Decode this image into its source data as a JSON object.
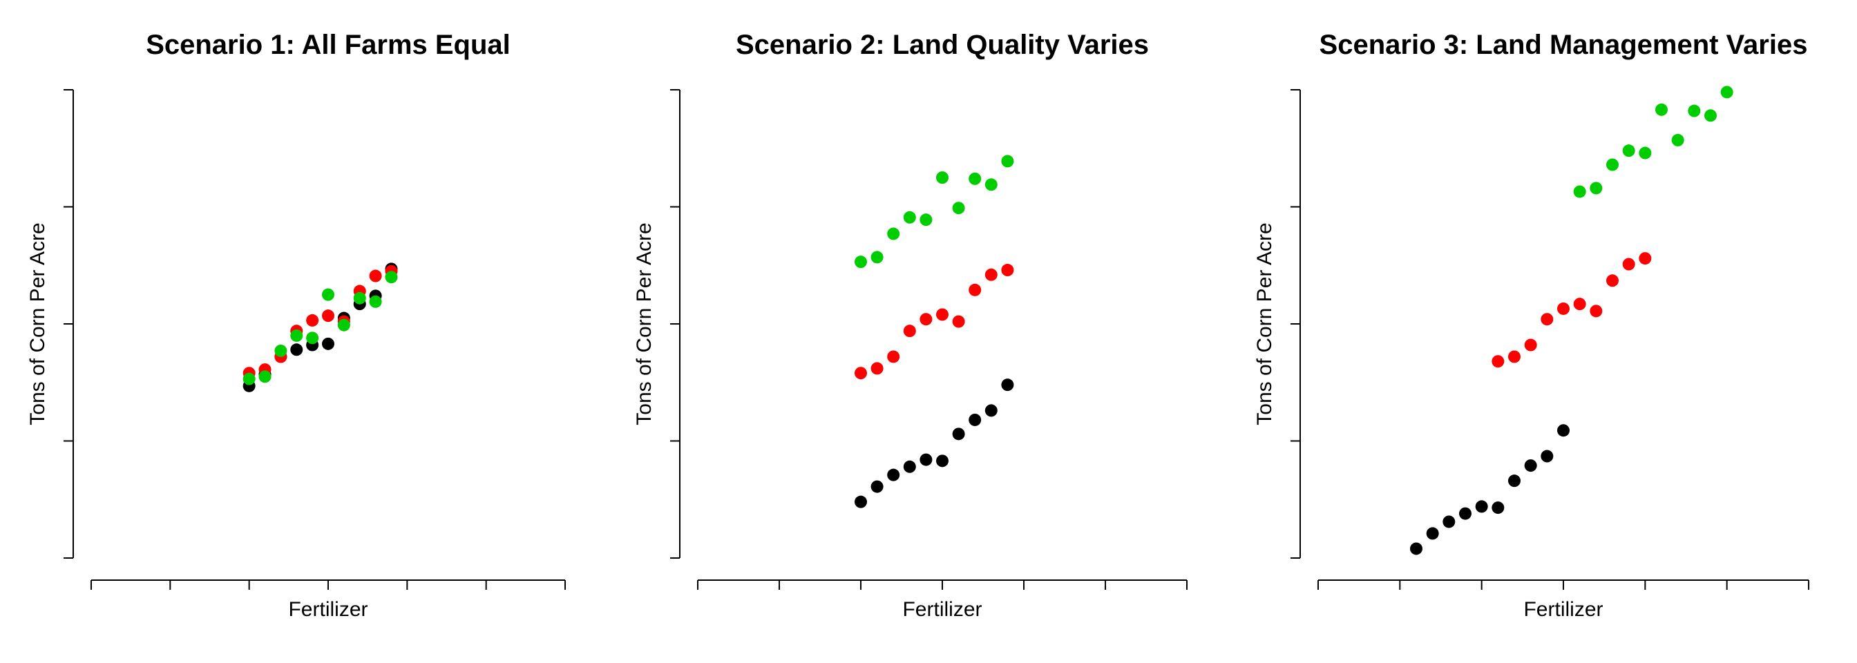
{
  "chart_data": [
    {
      "type": "scatter",
      "title": "Scenario 1: All Farms Equal",
      "xlabel": "Fertilizer",
      "ylabel": "Tons of Corn Per Acre",
      "xlim": [
        0,
        6
      ],
      "ylim": [
        0,
        4
      ],
      "x_ticks": [
        0,
        1,
        2,
        3,
        4,
        5,
        6
      ],
      "y_ticks": [
        0,
        1,
        2,
        3,
        4
      ],
      "grid": false,
      "series": [
        {
          "color": "#000000",
          "points": [
            [
              2.0,
              1.47
            ],
            [
              2.2,
              1.57
            ],
            [
              2.4,
              1.72
            ],
            [
              2.6,
              1.78
            ],
            [
              2.8,
              1.82
            ],
            [
              3.0,
              1.83
            ],
            [
              3.2,
              2.05
            ],
            [
              3.4,
              2.17
            ],
            [
              3.6,
              2.24
            ],
            [
              3.8,
              2.47
            ]
          ]
        },
        {
          "color": "#ff0000",
          "points": [
            [
              2.0,
              1.58
            ],
            [
              2.2,
              1.61
            ],
            [
              2.4,
              1.72
            ],
            [
              2.6,
              1.94
            ],
            [
              2.8,
              2.03
            ],
            [
              3.0,
              2.07
            ],
            [
              3.2,
              2.02
            ],
            [
              3.4,
              2.28
            ],
            [
              3.6,
              2.41
            ],
            [
              3.8,
              2.45
            ]
          ]
        },
        {
          "color": "#00cd00",
          "points": [
            [
              2.0,
              1.53
            ],
            [
              2.2,
              1.55
            ],
            [
              2.4,
              1.77
            ],
            [
              2.6,
              1.9
            ],
            [
              2.8,
              1.88
            ],
            [
              3.0,
              2.25
            ],
            [
              3.2,
              1.99
            ],
            [
              3.4,
              2.22
            ],
            [
              3.6,
              2.19
            ],
            [
              3.8,
              2.4
            ]
          ]
        }
      ]
    },
    {
      "type": "scatter",
      "title": "Scenario 2: Land Quality Varies",
      "xlabel": "Fertilizer",
      "ylabel": "Tons of Corn Per Acre",
      "xlim": [
        0,
        6
      ],
      "ylim": [
        0,
        4
      ],
      "x_ticks": [
        0,
        1,
        2,
        3,
        4,
        5,
        6
      ],
      "y_ticks": [
        0,
        1,
        2,
        3,
        4
      ],
      "grid": false,
      "series": [
        {
          "color": "#000000",
          "points": [
            [
              2.0,
              0.48
            ],
            [
              2.2,
              0.61
            ],
            [
              2.4,
              0.71
            ],
            [
              2.6,
              0.78
            ],
            [
              2.8,
              0.84
            ],
            [
              3.0,
              0.83
            ],
            [
              3.2,
              1.06
            ],
            [
              3.4,
              1.18
            ],
            [
              3.6,
              1.26
            ],
            [
              3.8,
              1.48
            ]
          ]
        },
        {
          "color": "#ff0000",
          "points": [
            [
              2.0,
              1.58
            ],
            [
              2.2,
              1.62
            ],
            [
              2.4,
              1.72
            ],
            [
              2.6,
              1.94
            ],
            [
              2.8,
              2.04
            ],
            [
              3.0,
              2.08
            ],
            [
              3.2,
              2.02
            ],
            [
              3.4,
              2.29
            ],
            [
              3.6,
              2.42
            ],
            [
              3.8,
              2.46
            ]
          ]
        },
        {
          "color": "#00cd00",
          "points": [
            [
              2.0,
              2.53
            ],
            [
              2.2,
              2.57
            ],
            [
              2.4,
              2.77
            ],
            [
              2.6,
              2.91
            ],
            [
              2.8,
              2.89
            ],
            [
              3.0,
              3.25
            ],
            [
              3.2,
              2.99
            ],
            [
              3.4,
              3.24
            ],
            [
              3.6,
              3.19
            ],
            [
              3.8,
              3.39
            ]
          ]
        }
      ]
    },
    {
      "type": "scatter",
      "title": "Scenario 3: Land Management Varies",
      "xlabel": "Fertilizer",
      "ylabel": "Tons of Corn Per Acre",
      "xlim": [
        0,
        6
      ],
      "ylim": [
        0,
        4
      ],
      "x_ticks": [
        0,
        1,
        2,
        3,
        4,
        5,
        6
      ],
      "y_ticks": [
        0,
        1,
        2,
        3,
        4
      ],
      "grid": false,
      "series": [
        {
          "color": "#000000",
          "points": [
            [
              1.2,
              0.08
            ],
            [
              1.4,
              0.21
            ],
            [
              1.6,
              0.31
            ],
            [
              1.8,
              0.38
            ],
            [
              2.0,
              0.44
            ],
            [
              2.2,
              0.43
            ],
            [
              2.4,
              0.66
            ],
            [
              2.6,
              0.79
            ],
            [
              2.8,
              0.87
            ],
            [
              3.0,
              1.09
            ]
          ]
        },
        {
          "color": "#ff0000",
          "points": [
            [
              2.2,
              1.68
            ],
            [
              2.4,
              1.72
            ],
            [
              2.6,
              1.82
            ],
            [
              2.8,
              2.04
            ],
            [
              3.0,
              2.13
            ],
            [
              3.2,
              2.17
            ],
            [
              3.4,
              2.11
            ],
            [
              3.6,
              2.37
            ],
            [
              3.8,
              2.51
            ],
            [
              4.0,
              2.56
            ]
          ]
        },
        {
          "color": "#00cd00",
          "points": [
            [
              3.2,
              3.13
            ],
            [
              3.4,
              3.16
            ],
            [
              3.6,
              3.36
            ],
            [
              3.8,
              3.48
            ],
            [
              4.0,
              3.46
            ],
            [
              4.2,
              3.83
            ],
            [
              4.4,
              3.57
            ],
            [
              4.6,
              3.82
            ],
            [
              4.8,
              3.78
            ],
            [
              5.0,
              3.98
            ]
          ]
        }
      ]
    }
  ]
}
